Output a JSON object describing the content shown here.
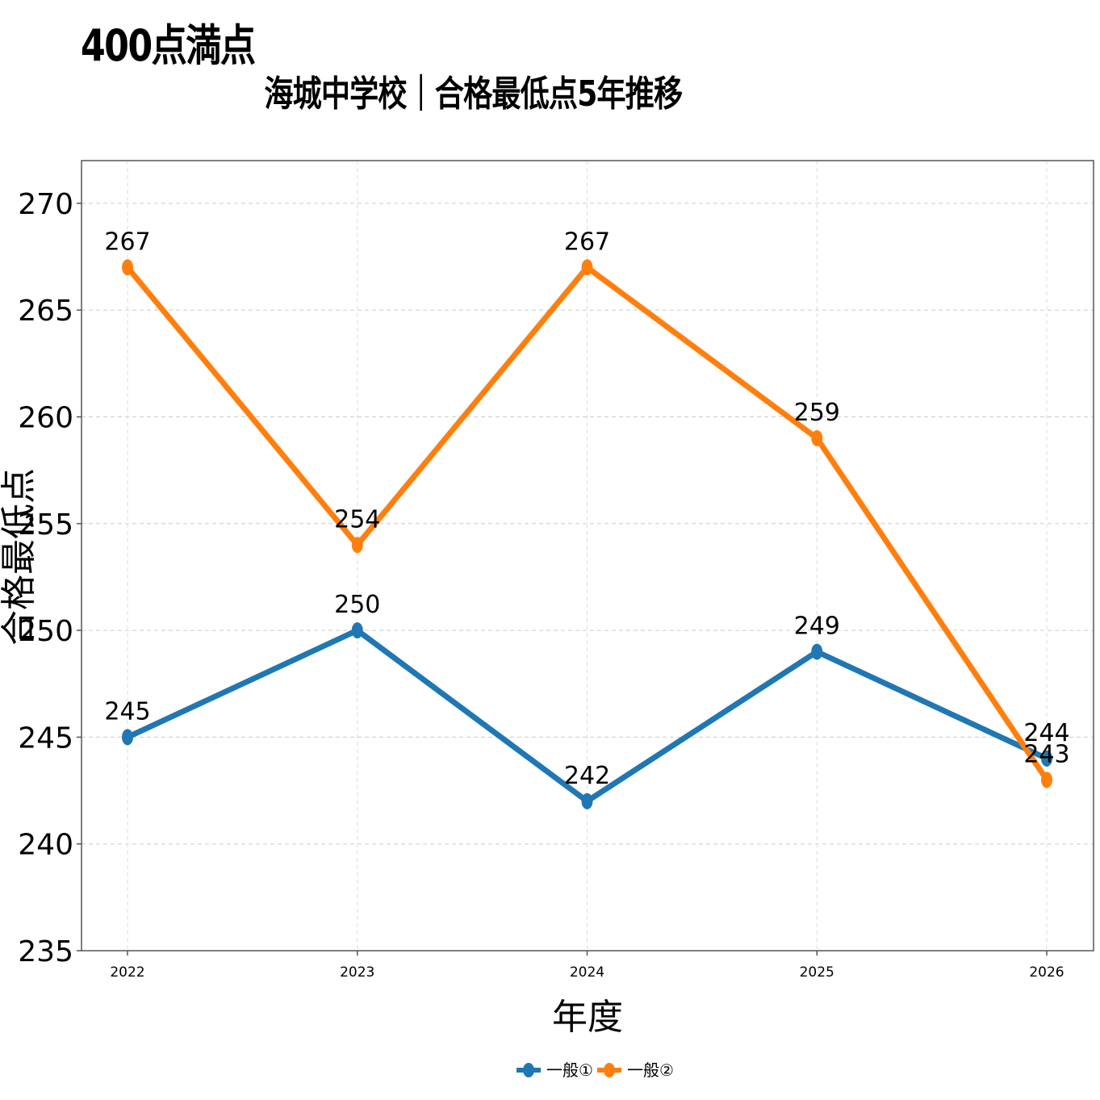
{
  "corner_note": "400点満点",
  "chart_data": {
    "type": "line",
    "title": "海城中学校｜合格最低点5年推移",
    "xlabel": "年度",
    "ylabel": "合格最低点",
    "categories": [
      "2022",
      "2023",
      "2024",
      "2025",
      "2026"
    ],
    "ylim": [
      235,
      272
    ],
    "yticks": [
      235,
      240,
      245,
      250,
      255,
      260,
      265,
      270
    ],
    "grid": true,
    "legend_position": "bottom-center",
    "series": [
      {
        "name": "一般①",
        "values": [
          245,
          250,
          242,
          249,
          244
        ],
        "color": "#1f77b4"
      },
      {
        "name": "一般②",
        "values": [
          267,
          254,
          267,
          259,
          243
        ],
        "color": "#ff7f0e"
      }
    ]
  }
}
